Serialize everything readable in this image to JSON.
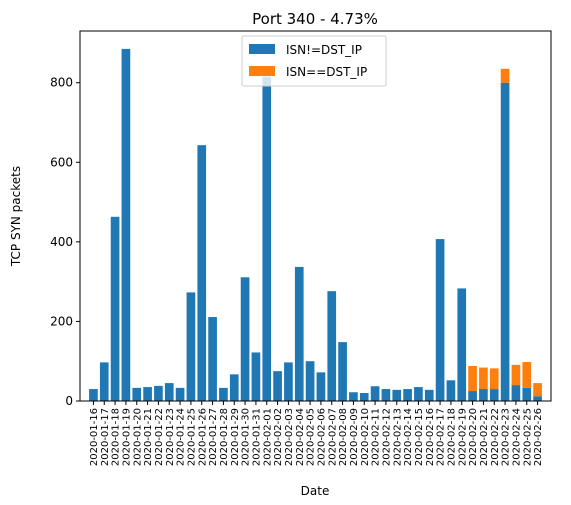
{
  "chart_data": {
    "type": "bar",
    "title": "Port 340 - 4.73%",
    "xlabel": "Date",
    "ylabel": "TCP SYN packets",
    "ylim": [
      0,
      930
    ],
    "yticks": [
      0,
      200,
      400,
      600,
      800
    ],
    "stacked": true,
    "grid": false,
    "legend_position": "top-center",
    "categories": [
      "2020-01-16",
      "2020-01-17",
      "2020-01-18",
      "2020-01-19",
      "2020-01-20",
      "2020-01-21",
      "2020-01-22",
      "2020-01-23",
      "2020-01-24",
      "2020-01-25",
      "2020-01-26",
      "2020-01-27",
      "2020-01-28",
      "2020-01-29",
      "2020-01-30",
      "2020-01-31",
      "2020-02-01",
      "2020-02-02",
      "2020-02-03",
      "2020-02-04",
      "2020-02-05",
      "2020-02-06",
      "2020-02-07",
      "2020-02-08",
      "2020-02-09",
      "2020-02-10",
      "2020-02-11",
      "2020-02-12",
      "2020-02-13",
      "2020-02-14",
      "2020-02-15",
      "2020-02-16",
      "2020-02-17",
      "2020-02-18",
      "2020-02-19",
      "2020-02-20",
      "2020-02-21",
      "2020-02-22",
      "2020-02-23",
      "2020-02-24",
      "2020-02-25",
      "2020-02-26"
    ],
    "series": [
      {
        "name": "ISN!=DST_IP",
        "color": "#1f77b4",
        "values": [
          30,
          97,
          463,
          885,
          33,
          35,
          38,
          45,
          33,
          273,
          643,
          211,
          33,
          67,
          311,
          122,
          815,
          75,
          97,
          337,
          100,
          72,
          276,
          148,
          22,
          20,
          37,
          30,
          28,
          30,
          35,
          28,
          407,
          52,
          283,
          25,
          30,
          30,
          800,
          40,
          33,
          12
        ]
      },
      {
        "name": "ISN==DST_IP",
        "color": "#ff7f0e",
        "values": [
          0,
          0,
          0,
          0,
          0,
          0,
          0,
          0,
          0,
          0,
          0,
          0,
          0,
          0,
          0,
          0,
          0,
          0,
          0,
          0,
          0,
          0,
          0,
          0,
          0,
          0,
          0,
          0,
          0,
          0,
          0,
          0,
          0,
          0,
          0,
          63,
          54,
          52,
          35,
          51,
          65,
          33
        ]
      }
    ]
  }
}
